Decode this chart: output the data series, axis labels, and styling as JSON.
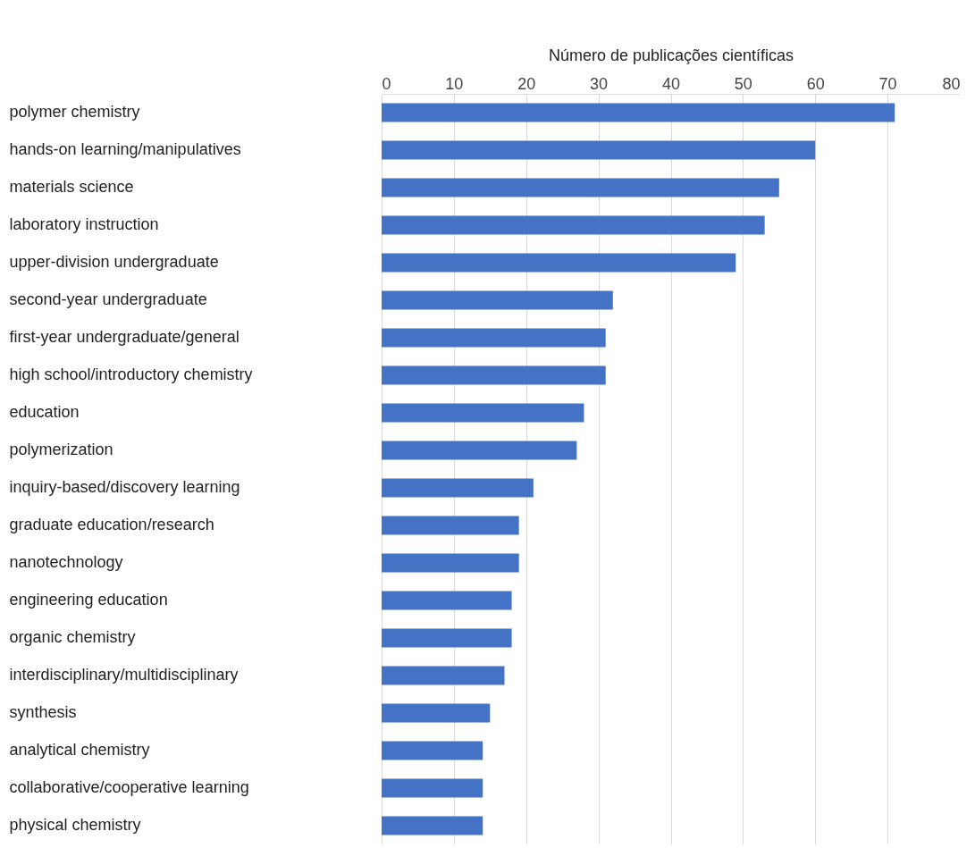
{
  "chart_data": {
    "type": "bar",
    "orientation": "horizontal",
    "xlabel": "Número de publicações científicas",
    "categories": [
      "polymer chemistry",
      "hands-on learning/manipulatives",
      "materials science",
      "laboratory instruction",
      "upper-division undergraduate",
      "second-year undergraduate",
      "first-year undergraduate/general",
      "high school/introductory chemistry",
      "education",
      "polymerization",
      "inquiry-based/discovery learning",
      "graduate education/research",
      "nanotechnology",
      "engineering education",
      "organic chemistry",
      "interdisciplinary/multidisciplinary",
      "synthesis",
      "analytical chemistry",
      "collaborative/cooperative learning",
      "physical chemistry"
    ],
    "values": [
      71,
      60,
      55,
      53,
      49,
      32,
      31,
      31,
      28,
      27,
      21,
      19,
      19,
      18,
      18,
      17,
      15,
      14,
      14,
      14
    ],
    "color": "#4472c4",
    "xlim": [
      0,
      80
    ],
    "xticks": [
      0,
      10,
      20,
      30,
      40,
      50,
      60,
      70,
      80
    ],
    "grid": "x"
  }
}
